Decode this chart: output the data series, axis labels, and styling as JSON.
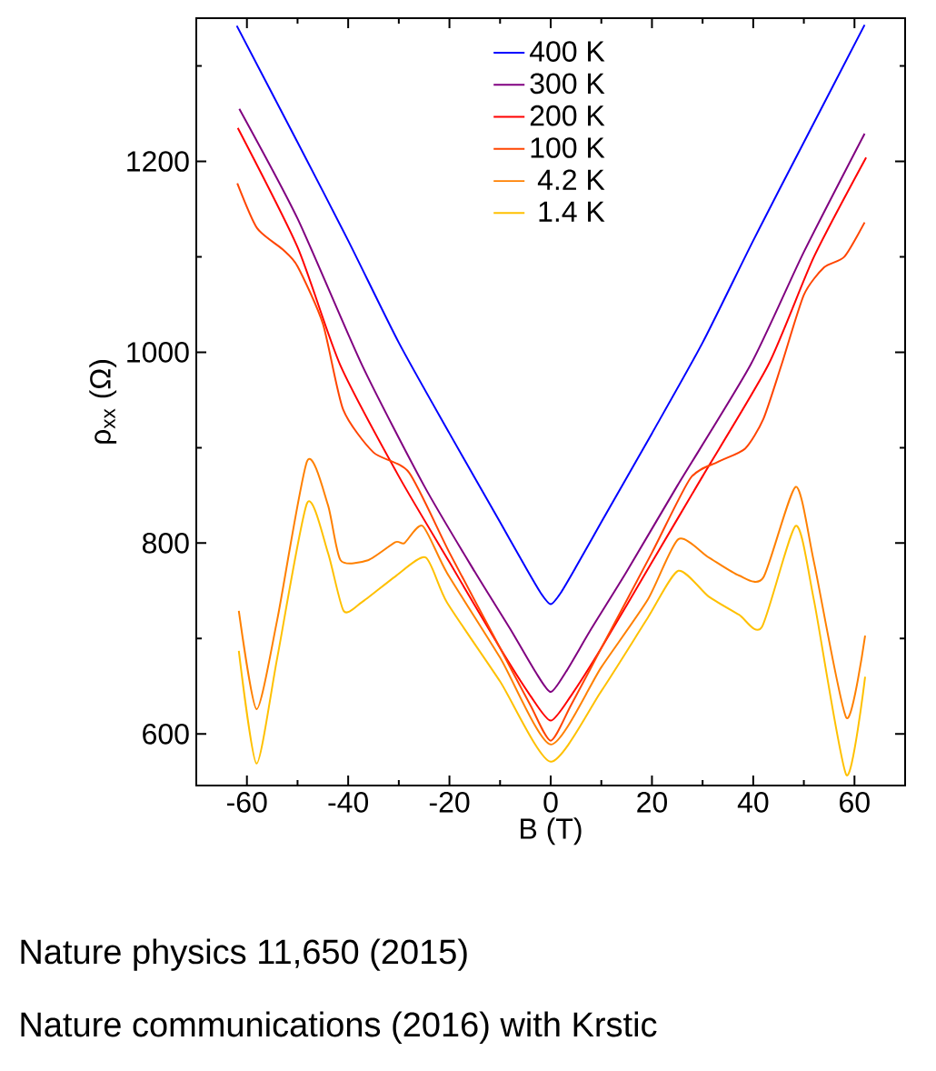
{
  "chart_data": {
    "type": "line",
    "xlabel": "B (T)",
    "ylabel": "ρ$_{xx}$ (Ω)",
    "xlim": [
      -70,
      70
    ],
    "ylim": [
      546,
      1350
    ],
    "xticks": [
      -60,
      {
        "value": -50,
        "label": null
      },
      -40,
      {
        "value": -30,
        "label": null
      },
      -20,
      {
        "value": -10,
        "label": null
      },
      0,
      {
        "value": 10,
        "label": null
      },
      20,
      {
        "value": 30,
        "label": null
      },
      40,
      {
        "value": 50,
        "label": null
      },
      60
    ],
    "yticks": [
      600,
      {
        "value": 700,
        "label": null
      },
      800,
      {
        "value": 900,
        "label": null
      },
      1000,
      {
        "value": 1100,
        "label": null
      },
      1200,
      {
        "value": 1300,
        "label": null
      }
    ],
    "legend": "top",
    "marker": "none",
    "series": [
      {
        "name": "400 K",
        "color": "#0000ff",
        "x": [
          -62,
          -50,
          -40,
          -30,
          -20,
          -10,
          -5,
          -2,
          0,
          2,
          5,
          10,
          20,
          30,
          40,
          50,
          62
        ],
        "values": [
          1342,
          1220,
          1117,
          1010,
          915,
          822,
          775,
          748,
          736,
          748,
          775,
          822,
          915,
          1010,
          1117,
          1220,
          1343
        ]
      },
      {
        "name": "300 K",
        "color": "#800080",
        "x": [
          -61.5,
          -50,
          -37.3,
          -25,
          -15,
          -8,
          -3,
          0,
          3,
          8,
          15,
          25,
          39.5,
          50,
          62
        ],
        "values": [
          1255,
          1140,
          987,
          860,
          770,
          710,
          665,
          644,
          665,
          710,
          770,
          860,
          987,
          1105,
          1229
        ]
      },
      {
        "name": "200 K",
        "color": "#ff0000",
        "x": [
          -61.8,
          -50,
          -41.6,
          -30,
          -20,
          -10,
          -4,
          0,
          4,
          10,
          20,
          30,
          43,
          52,
          62.3
        ],
        "values": [
          1235,
          1110,
          987,
          870,
          780,
          690,
          640,
          614,
          640,
          690,
          780,
          870,
          987,
          1100,
          1204
        ]
      },
      {
        "name": "100 K",
        "color": "#ff4500",
        "x": [
          -61.9,
          -58,
          -53,
          -50,
          -45,
          -41,
          -35,
          -28,
          -20,
          -10,
          -4,
          0,
          4,
          10,
          20,
          27.6,
          33,
          38.4,
          42,
          45.6,
          50,
          54,
          58,
          62
        ],
        "values": [
          1177,
          1130,
          1108,
          1090,
          1030,
          940,
          895,
          874,
          790,
          690,
          630,
          593,
          630,
          690,
          790,
          868,
          885,
          899,
          930,
          987,
          1060,
          1089,
          1100,
          1136
        ]
      },
      {
        "name": "4.2 K",
        "color": "#ff8000",
        "x": [
          -61.6,
          -58.1,
          -54,
          -48.1,
          -44,
          -41.5,
          -36.1,
          -30.7,
          -28.9,
          -25.3,
          -20.5,
          -10,
          0,
          10,
          19.2,
          25.2,
          31.2,
          37.2,
          42,
          48.4,
          52,
          58.4,
          62.1
        ],
        "values": [
          729,
          626,
          720,
          886,
          840,
          782,
          782,
          801,
          800,
          818,
          769,
          680,
          589,
          670,
          741,
          804,
          785,
          766,
          764,
          859,
          780,
          617,
          703
        ]
      },
      {
        "name": "1.4 K",
        "color": "#ffc000",
        "x": [
          -61.6,
          -58.1,
          -54,
          -48.1,
          -44,
          -40.9,
          -37.3,
          -30.7,
          -24.7,
          -20.5,
          -10,
          0,
          10,
          19.2,
          25.2,
          31.2,
          37.2,
          41.7,
          48.4,
          52,
          58.4,
          62.1
        ],
        "values": [
          687,
          569,
          680,
          842,
          790,
          729,
          738,
          765,
          785,
          738,
          655,
          571,
          645,
          722,
          771,
          744,
          725,
          712,
          818,
          740,
          557,
          660
        ]
      }
    ],
    "annotations": [
      "Nature physics 11,650 (2015)",
      "Nature communications (2016) with Krstic"
    ]
  }
}
